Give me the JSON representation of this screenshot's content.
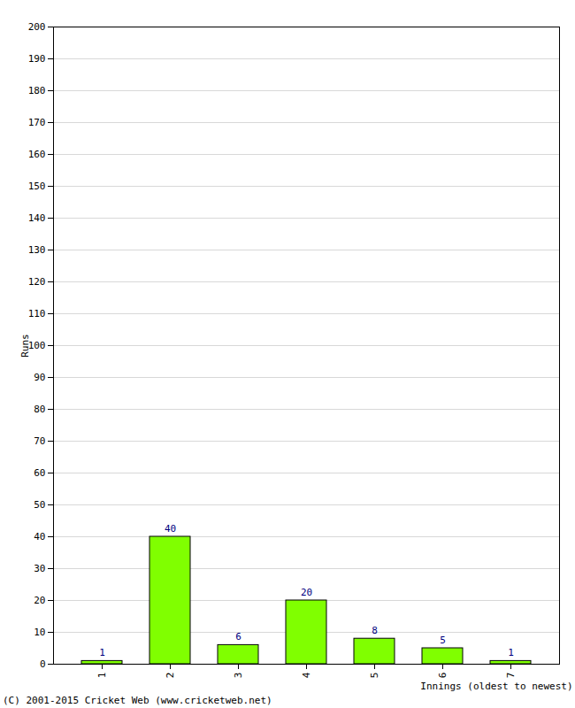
{
  "chart_data": {
    "type": "bar",
    "categories": [
      "1",
      "2",
      "3",
      "4",
      "5",
      "6",
      "7"
    ],
    "values": [
      1,
      40,
      6,
      20,
      8,
      5,
      1
    ],
    "color": "#80ff00",
    "xlabel": "Innings (oldest to newest)",
    "ylabel": "Runs",
    "ylim": [
      0,
      200
    ],
    "yticks": [
      0,
      10,
      20,
      30,
      40,
      50,
      60,
      70,
      80,
      90,
      100,
      110,
      120,
      130,
      140,
      150,
      160,
      170,
      180,
      190,
      200
    ],
    "grid": true,
    "data_labels": true,
    "caption": "(C) 2001-2015 Cricket Web (www.cricketweb.net)"
  }
}
